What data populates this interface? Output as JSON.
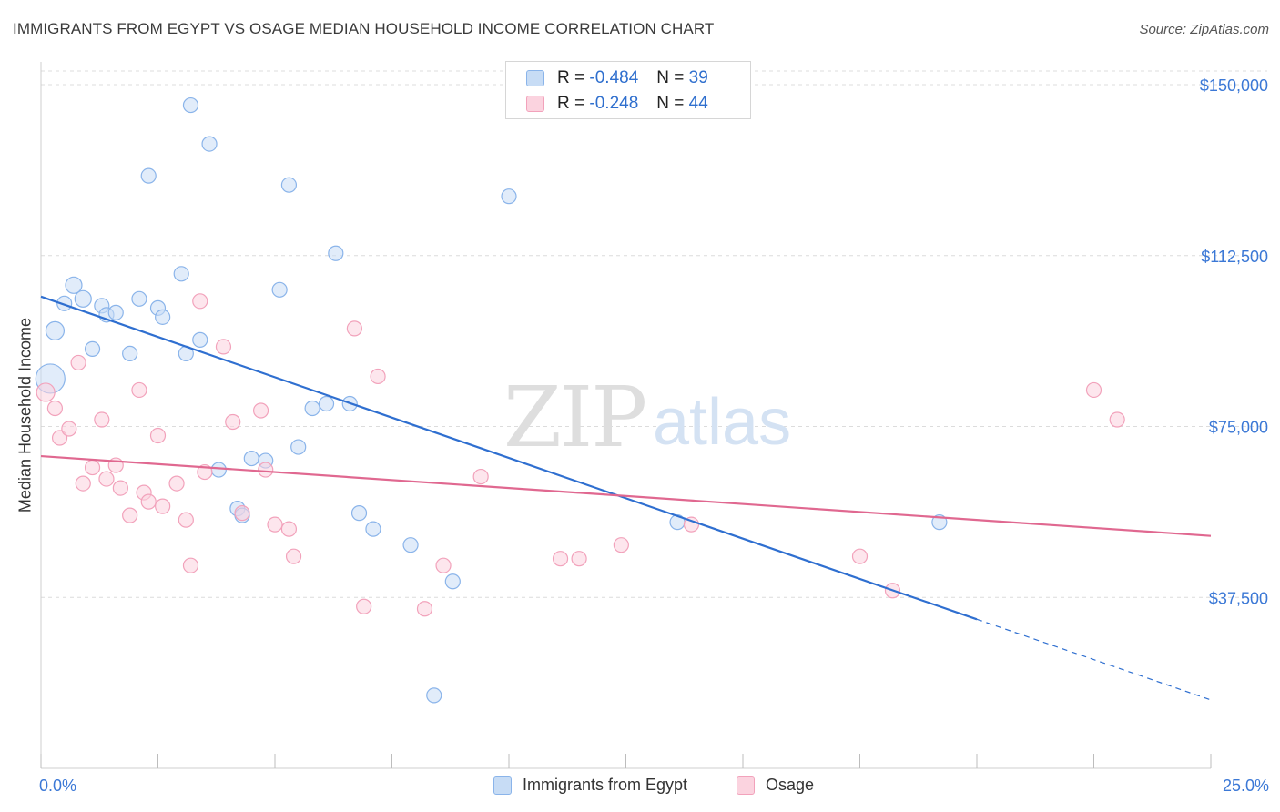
{
  "title": "IMMIGRANTS FROM EGYPT VS OSAGE MEDIAN HOUSEHOLD INCOME CORRELATION CHART",
  "source": "Source: ZipAtlas.com",
  "watermark": {
    "zip": "ZIP",
    "atlas": "atlas"
  },
  "legend_top": [
    {
      "r_label": "R =",
      "r_value": "-0.484",
      "n_label": "N =",
      "n_value": "39",
      "color": "#8ab4ea"
    },
    {
      "r_label": "R =",
      "r_value": "-0.248",
      "n_label": "N =",
      "n_value": "44",
      "color": "#f2a2bb"
    }
  ],
  "legend_bottom": [
    {
      "label": "Immigrants from Egypt",
      "color": "#8ab4ea"
    },
    {
      "label": "Osage",
      "color": "#f2a2bb"
    }
  ],
  "chart_data": {
    "type": "scatter",
    "xlabel": "",
    "ylabel": "Median Household Income",
    "xlim": [
      0,
      25
    ],
    "ylim": [
      0,
      153000
    ],
    "x_tick_labels": {
      "min": "0.0%",
      "max": "25.0%"
    },
    "y_ticks": [
      {
        "value": 37500,
        "label": "$37,500"
      },
      {
        "value": 75000,
        "label": "$75,000"
      },
      {
        "value": 112500,
        "label": "$112,500"
      },
      {
        "value": 150000,
        "label": "$150,000"
      }
    ],
    "series": [
      {
        "name": "Immigrants from Egypt",
        "color": "#8ab4ea",
        "line_color": "#2f6fd0",
        "trend": {
          "x0": 0.0,
          "y0": 103500,
          "x1": 25.0,
          "y1": 15000,
          "solid_until": 20.0
        },
        "points": [
          [
            0.2,
            85500,
            16
          ],
          [
            0.3,
            96000,
            10
          ],
          [
            0.5,
            102000,
            8
          ],
          [
            0.7,
            106000,
            9
          ],
          [
            0.9,
            103000,
            9
          ],
          [
            1.1,
            92000,
            8
          ],
          [
            1.3,
            101500,
            8
          ],
          [
            1.4,
            99500,
            8
          ],
          [
            1.6,
            100000,
            8
          ],
          [
            1.9,
            91000,
            8
          ],
          [
            2.1,
            103000,
            8
          ],
          [
            2.3,
            130000,
            8
          ],
          [
            2.5,
            101000,
            8
          ],
          [
            2.6,
            99000,
            8
          ],
          [
            3.0,
            108500,
            8
          ],
          [
            3.1,
            91000,
            8
          ],
          [
            3.2,
            145500,
            8
          ],
          [
            3.4,
            94000,
            8
          ],
          [
            3.6,
            137000,
            8
          ],
          [
            3.8,
            65500,
            8
          ],
          [
            4.2,
            57000,
            8
          ],
          [
            4.3,
            55500,
            8
          ],
          [
            4.5,
            68000,
            8
          ],
          [
            4.8,
            67500,
            8
          ],
          [
            5.1,
            105000,
            8
          ],
          [
            5.3,
            128000,
            8
          ],
          [
            5.5,
            70500,
            8
          ],
          [
            5.8,
            79000,
            8
          ],
          [
            6.1,
            80000,
            8
          ],
          [
            6.3,
            113000,
            8
          ],
          [
            6.6,
            80000,
            8
          ],
          [
            6.8,
            56000,
            8
          ],
          [
            7.1,
            52500,
            8
          ],
          [
            7.9,
            49000,
            8
          ],
          [
            8.4,
            16000,
            8
          ],
          [
            8.8,
            41000,
            8
          ],
          [
            10.0,
            125500,
            8
          ],
          [
            13.6,
            54000,
            8
          ],
          [
            19.2,
            54000,
            8
          ]
        ]
      },
      {
        "name": "Osage",
        "color": "#f2a2bb",
        "line_color": "#e06890",
        "trend": {
          "x0": 0.0,
          "y0": 68500,
          "x1": 25.0,
          "y1": 51000,
          "solid_until": 25.0
        },
        "points": [
          [
            0.1,
            82500,
            10
          ],
          [
            0.3,
            79000,
            8
          ],
          [
            0.4,
            72500,
            8
          ],
          [
            0.6,
            74500,
            8
          ],
          [
            0.8,
            89000,
            8
          ],
          [
            0.9,
            62500,
            8
          ],
          [
            1.1,
            66000,
            8
          ],
          [
            1.3,
            76500,
            8
          ],
          [
            1.4,
            63500,
            8
          ],
          [
            1.6,
            66500,
            8
          ],
          [
            1.7,
            61500,
            8
          ],
          [
            1.9,
            55500,
            8
          ],
          [
            2.1,
            83000,
            8
          ],
          [
            2.2,
            60500,
            8
          ],
          [
            2.3,
            58500,
            8
          ],
          [
            2.5,
            73000,
            8
          ],
          [
            2.6,
            57500,
            8
          ],
          [
            2.9,
            62500,
            8
          ],
          [
            3.1,
            54500,
            8
          ],
          [
            3.2,
            44500,
            8
          ],
          [
            3.4,
            102500,
            8
          ],
          [
            3.5,
            65000,
            8
          ],
          [
            3.9,
            92500,
            8
          ],
          [
            4.1,
            76000,
            8
          ],
          [
            4.3,
            56000,
            8
          ],
          [
            4.7,
            78500,
            8
          ],
          [
            4.8,
            65500,
            8
          ],
          [
            5.0,
            53500,
            8
          ],
          [
            5.3,
            52500,
            8
          ],
          [
            5.4,
            46500,
            8
          ],
          [
            6.7,
            96500,
            8
          ],
          [
            6.9,
            35500,
            8
          ],
          [
            7.2,
            86000,
            8
          ],
          [
            8.2,
            35000,
            8
          ],
          [
            8.6,
            44500,
            8
          ],
          [
            9.4,
            64000,
            8
          ],
          [
            11.1,
            46000,
            8
          ],
          [
            11.5,
            46000,
            8
          ],
          [
            12.4,
            49000,
            8
          ],
          [
            13.9,
            53500,
            8
          ],
          [
            17.5,
            46500,
            8
          ],
          [
            18.2,
            39000,
            8
          ],
          [
            22.5,
            83000,
            8
          ],
          [
            23.0,
            76500,
            8
          ]
        ]
      }
    ]
  }
}
